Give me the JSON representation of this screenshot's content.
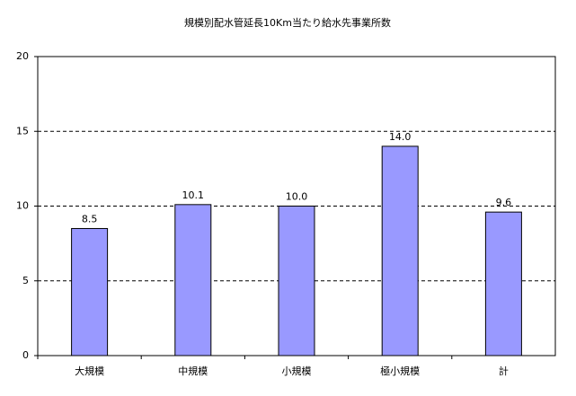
{
  "chart_data": {
    "type": "bar",
    "title": "規模別配水管延長10Km当たり給水先事業所数",
    "categories": [
      "大規模",
      "中規模",
      "小規模",
      "極小規模",
      "計"
    ],
    "values": [
      8.5,
      10.1,
      10.0,
      14.0,
      9.6
    ],
    "value_labels": [
      "8.5",
      "10.1",
      "10.0",
      "14.0",
      "9.6"
    ],
    "color": "#9999ff",
    "ylim": [
      0,
      20
    ],
    "yticks": [
      0,
      5,
      10,
      15,
      20
    ],
    "grid": true
  }
}
